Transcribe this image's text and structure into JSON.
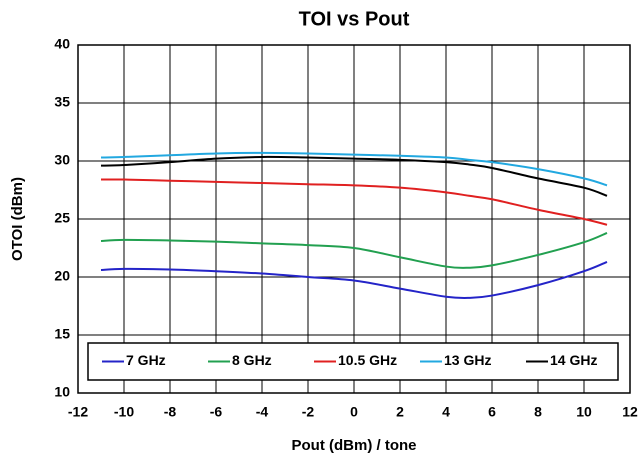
{
  "chart_data": {
    "type": "line",
    "title": "TOI vs Pout",
    "xlabel": "Pout (dBm) / tone",
    "ylabel": "OTOI (dBm)",
    "x": [
      -11,
      -10,
      -8,
      -6,
      -4,
      -2,
      0,
      2,
      4,
      5,
      6,
      8,
      10,
      11
    ],
    "series": [
      {
        "name": "7 GHz",
        "color": "#2424c8",
        "values": [
          20.6,
          20.7,
          20.65,
          20.5,
          20.3,
          20.0,
          19.7,
          19.0,
          18.3,
          18.2,
          18.4,
          19.3,
          20.5,
          21.3
        ]
      },
      {
        "name": "8 GHz",
        "color": "#22a050",
        "values": [
          23.1,
          23.2,
          23.15,
          23.05,
          22.9,
          22.75,
          22.5,
          21.7,
          20.9,
          20.8,
          21.0,
          21.9,
          23.0,
          23.8
        ]
      },
      {
        "name": "10.5 GHz",
        "color": "#e02020",
        "values": [
          28.4,
          28.4,
          28.3,
          28.2,
          28.1,
          28.0,
          27.9,
          27.7,
          27.3,
          27.0,
          26.7,
          25.8,
          25.0,
          24.5
        ]
      },
      {
        "name": "13 GHz",
        "color": "#22a8e0",
        "values": [
          30.3,
          30.35,
          30.5,
          30.65,
          30.7,
          30.65,
          30.55,
          30.45,
          30.3,
          30.1,
          29.9,
          29.3,
          28.5,
          27.9
        ]
      },
      {
        "name": "14 GHz",
        "color": "#000000",
        "values": [
          29.6,
          29.65,
          29.9,
          30.2,
          30.35,
          30.3,
          30.2,
          30.1,
          29.9,
          29.7,
          29.4,
          28.5,
          27.7,
          27.0
        ]
      }
    ],
    "xlim": [
      -12,
      12
    ],
    "xticks": [
      -12,
      -10,
      -8,
      -6,
      -4,
      -2,
      0,
      2,
      4,
      6,
      8,
      10,
      12
    ],
    "ylim": [
      10,
      40
    ],
    "yticks": [
      10,
      15,
      20,
      25,
      30,
      35,
      40
    ],
    "grid": true,
    "legend": "lower center"
  }
}
